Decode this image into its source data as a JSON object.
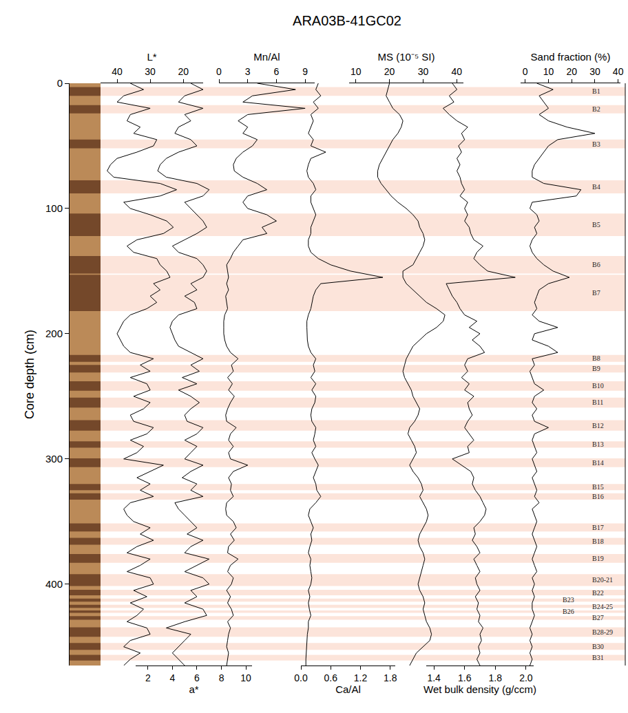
{
  "chart_data": {
    "type": "line",
    "title": "ARA03B-41GC02",
    "y_label": "Core depth (cm)",
    "ylim": [
      465,
      0
    ],
    "yticks": [
      0,
      100,
      200,
      300,
      400
    ],
    "grid": false,
    "y": [
      0,
      5,
      10,
      15,
      20,
      25,
      30,
      35,
      40,
      45,
      50,
      55,
      60,
      65,
      70,
      75,
      80,
      85,
      90,
      95,
      100,
      105,
      110,
      115,
      120,
      125,
      130,
      135,
      140,
      145,
      150,
      155,
      160,
      165,
      170,
      175,
      180,
      185,
      190,
      195,
      200,
      205,
      210,
      215,
      220,
      225,
      230,
      235,
      240,
      245,
      250,
      255,
      260,
      265,
      270,
      275,
      280,
      285,
      290,
      295,
      300,
      305,
      310,
      315,
      320,
      325,
      330,
      335,
      340,
      345,
      350,
      355,
      360,
      365,
      370,
      375,
      380,
      385,
      390,
      395,
      400,
      405,
      410,
      415,
      420,
      425,
      430,
      435,
      440,
      445,
      450,
      455,
      460,
      465
    ],
    "series": [
      {
        "name": "L*",
        "color": "#000000",
        "line_style": "solid",
        "axis": "top",
        "xlim": [
          45,
          14
        ],
        "xticks": [
          40,
          30,
          20
        ],
        "values": [
          36,
          32,
          38,
          40,
          30,
          36,
          37,
          33,
          35,
          28,
          29,
          34,
          40,
          42,
          43,
          41,
          27,
          22,
          27,
          38,
          36,
          30,
          25,
          23,
          26,
          34,
          37,
          35,
          28,
          27,
          25,
          24,
          29,
          27,
          30,
          28,
          31,
          36,
          38,
          39,
          40,
          39,
          38,
          36,
          29,
          33,
          30,
          36,
          31,
          30,
          35,
          30,
          32,
          36,
          35,
          29,
          31,
          36,
          32,
          34,
          38,
          26,
          30,
          34,
          30,
          33,
          29,
          36,
          38,
          37,
          35,
          30,
          33,
          29,
          34,
          37,
          30,
          33,
          37,
          30,
          29,
          35,
          31,
          36,
          32,
          34,
          37,
          31,
          30,
          36,
          38,
          33,
          36,
          38
        ]
      },
      {
        "name": "a*",
        "color": "#000000",
        "line_style": "solid",
        "axis": "bottom",
        "xlim": [
          1,
          10.5
        ],
        "xticks": [
          2,
          4,
          6,
          8,
          10
        ],
        "values": [
          5.5,
          6.5,
          5,
          4.5,
          6.5,
          5,
          5.5,
          4.5,
          4.2,
          5.5,
          6,
          4.5,
          3.5,
          3,
          2.8,
          3.5,
          6,
          7,
          6.5,
          5,
          5.5,
          6,
          6.5,
          6.8,
          6,
          5,
          4,
          4.5,
          6,
          6.5,
          6.8,
          6.5,
          5.5,
          6,
          5,
          5.8,
          6,
          4.5,
          4,
          3.8,
          4,
          4.2,
          4.5,
          5.5,
          6.5,
          5.5,
          6.2,
          4.8,
          6,
          4.5,
          5.5,
          6.2,
          5.5,
          5,
          5.2,
          6.5,
          6,
          5,
          6,
          5.5,
          5,
          6.5,
          5.5,
          4.8,
          6,
          5.5,
          6.5,
          4.2,
          4.5,
          5,
          5.5,
          6,
          5.2,
          6.5,
          5.5,
          5,
          7,
          6,
          5,
          6.5,
          7,
          5.5,
          6,
          5,
          6.5,
          6.8,
          5,
          3.5,
          5.5,
          5,
          4.5,
          4,
          4.5,
          5
        ]
      },
      {
        "name": "Mn/Al",
        "color": "#000000",
        "line_style": "solid",
        "axis": "top",
        "xlim": [
          0,
          10
        ],
        "xticks": [
          0,
          3,
          6,
          9
        ],
        "values": [
          4,
          8,
          3.5,
          2.5,
          9,
          3,
          2,
          3,
          2.5,
          4,
          3.5,
          2.5,
          1.8,
          1.5,
          1.6,
          2.5,
          4,
          5,
          3,
          2.5,
          3,
          5,
          6,
          4.5,
          5,
          2.5,
          2,
          1.5,
          1.2,
          0.8,
          0.9,
          1,
          0.8,
          1,
          0.7,
          0.8,
          0.9,
          0.6,
          0.5,
          0.5,
          0.5,
          0.6,
          0.8,
          1.2,
          2,
          1.3,
          1.5,
          0.9,
          1.4,
          1,
          1.6,
          1.2,
          0.9,
          0.7,
          0.8,
          1.8,
          1.2,
          1,
          1.5,
          1,
          1.2,
          3,
          1.5,
          1,
          1.3,
          1.2,
          1.5,
          0.8,
          0.7,
          0.8,
          1.5,
          1.8,
          1.2,
          1.6,
          1,
          0.9,
          2,
          1.2,
          0.9,
          1.5,
          1.3,
          0.8,
          1.2,
          0.9,
          1.3,
          1.5,
          0.9,
          1.2,
          1,
          0.9,
          0.8,
          1,
          0.9,
          0.8
        ]
      },
      {
        "name": "Ca/Al",
        "color": "#000000",
        "line_style": "solid",
        "axis": "bottom",
        "xlim": [
          0,
          1.9
        ],
        "xticks": [
          {
            "value": 0,
            "label": "0.0"
          },
          0.6,
          1.2,
          1.8
        ],
        "values": [
          0.35,
          0.3,
          0.4,
          0.25,
          0.35,
          0.2,
          0.25,
          0.2,
          0.15,
          0.25,
          0.2,
          0.5,
          0.2,
          0.15,
          0.12,
          0.15,
          0.25,
          0.3,
          0.2,
          0.2,
          0.25,
          0.3,
          0.25,
          0.2,
          0.2,
          0.15,
          0.15,
          0.2,
          0.35,
          0.6,
          1.0,
          1.65,
          0.4,
          0.3,
          0.25,
          0.22,
          0.2,
          0.15,
          0.12,
          0.12,
          0.12,
          0.13,
          0.15,
          0.2,
          0.3,
          0.25,
          0.28,
          0.2,
          0.3,
          0.22,
          0.3,
          0.28,
          0.22,
          0.2,
          0.22,
          0.3,
          0.28,
          0.25,
          0.3,
          0.22,
          0.28,
          0.35,
          0.3,
          0.25,
          0.3,
          0.32,
          0.4,
          0.3,
          0.18,
          0.15,
          0.2,
          0.25,
          0.2,
          0.22,
          0.18,
          0.15,
          0.2,
          0.18,
          0.2,
          0.22,
          0.2,
          0.15,
          0.18,
          0.15,
          0.17,
          0.2,
          0.15,
          0.15,
          0.13,
          0.12,
          0.12,
          0.1,
          0.1,
          0.1
        ]
      },
      {
        "name": "MS (10⁻⁵ SI)",
        "color": "#000000",
        "line_style": "solid",
        "axis": "top",
        "xlim": [
          8,
          42
        ],
        "xticks": [
          10,
          20,
          30,
          40
        ],
        "values": [
          20,
          19.5,
          19,
          20,
          21,
          23,
          24,
          23.5,
          22.5,
          21,
          20,
          19,
          18,
          17,
          16.5,
          16.5,
          17.5,
          19,
          20.5,
          22.5,
          25,
          27,
          28.5,
          29,
          30,
          30.5,
          30,
          29,
          28,
          27,
          24,
          24,
          25,
          27,
          29,
          31,
          34,
          36.5,
          36,
          34,
          31,
          29,
          27,
          26,
          25,
          24.5,
          24,
          24.5,
          25.5,
          26.5,
          27,
          28,
          29,
          28.5,
          27.5,
          26,
          25.5,
          26.5,
          27.5,
          28,
          27,
          26,
          27,
          28.5,
          29.5,
          30,
          29,
          30,
          31,
          31.5,
          31,
          30,
          29,
          28.5,
          29,
          30,
          30.5,
          30,
          29.5,
          29,
          28.5,
          29,
          30,
          30.5,
          30,
          30.5,
          31,
          32,
          32.5,
          32,
          30,
          28,
          27,
          26
        ]
      },
      {
        "name": "Wet bulk density (g/ccm)",
        "color": "#000000",
        "line_style": "solid",
        "axis": "bottom",
        "xlim": [
          1.35,
          2.05
        ],
        "xticks": [
          1.4,
          1.6,
          1.8,
          {
            "value": 2,
            "label": "2.0"
          }
        ],
        "values": [
          1.52,
          1.55,
          1.5,
          1.53,
          1.46,
          1.5,
          1.55,
          1.62,
          1.58,
          1.6,
          1.56,
          1.58,
          1.55,
          1.57,
          1.55,
          1.57,
          1.58,
          1.6,
          1.57,
          1.62,
          1.6,
          1.62,
          1.6,
          1.63,
          1.64,
          1.66,
          1.72,
          1.68,
          1.66,
          1.7,
          1.75,
          1.93,
          1.48,
          1.5,
          1.52,
          1.55,
          1.57,
          1.6,
          1.68,
          1.63,
          1.7,
          1.65,
          1.7,
          1.73,
          1.62,
          1.6,
          1.62,
          1.58,
          1.63,
          1.6,
          1.66,
          1.62,
          1.63,
          1.65,
          1.62,
          1.6,
          1.63,
          1.66,
          1.62,
          1.63,
          1.52,
          1.58,
          1.64,
          1.66,
          1.65,
          1.67,
          1.7,
          1.72,
          1.74,
          1.73,
          1.7,
          1.66,
          1.67,
          1.65,
          1.68,
          1.7,
          1.66,
          1.68,
          1.7,
          1.67,
          1.68,
          1.7,
          1.67,
          1.69,
          1.68,
          1.7,
          1.69,
          1.72,
          1.7,
          1.71,
          1.69,
          1.7,
          1.68,
          1.7
        ]
      },
      {
        "name": "Sand fraction (%)",
        "color": "#000000",
        "line_style": "solid",
        "axis": "top",
        "xlim": [
          -2,
          41
        ],
        "xticks": [
          0,
          10,
          20,
          30,
          40
        ],
        "values": [
          5,
          12,
          6,
          8,
          10,
          6,
          10,
          18,
          30,
          14,
          10,
          8,
          6,
          4,
          3,
          3,
          8,
          24,
          22,
          3,
          2,
          5,
          6,
          4,
          5,
          3,
          2,
          3,
          5,
          8,
          12,
          19,
          10,
          6,
          5,
          4,
          5,
          3,
          6,
          14,
          4,
          3,
          10,
          14,
          3,
          4,
          2,
          3,
          4,
          8,
          4,
          3,
          5,
          3,
          4,
          10,
          4,
          3,
          4,
          5,
          3,
          4,
          5,
          3,
          4,
          5,
          4,
          6,
          3,
          4,
          5,
          4,
          3,
          4,
          5,
          4,
          3,
          4,
          5,
          3,
          4,
          3,
          4,
          3,
          3,
          4,
          3,
          2,
          3,
          2,
          3,
          2,
          3,
          2
        ]
      }
    ],
    "bands": [
      {
        "label": "B1",
        "from": 3,
        "to": 10
      },
      {
        "label": "B2",
        "from": 17.5,
        "to": 24
      },
      {
        "label": "B3",
        "from": 45,
        "to": 52
      },
      {
        "label": "B4",
        "from": 77.5,
        "to": 88
      },
      {
        "label": "B5",
        "from": 104,
        "to": 122
      },
      {
        "label": "B6",
        "from": 138,
        "to": 152
      },
      {
        "label": "B7",
        "from": 153,
        "to": 182
      },
      {
        "label": "B8",
        "from": 217,
        "to": 222.5
      },
      {
        "label": "B9",
        "from": 225,
        "to": 231
      },
      {
        "label": "B10",
        "from": 238,
        "to": 245.5
      },
      {
        "label": "B11",
        "from": 251,
        "to": 259
      },
      {
        "label": "B12",
        "from": 269,
        "to": 277.5
      },
      {
        "label": "B13",
        "from": 286,
        "to": 291
      },
      {
        "label": "B14",
        "from": 299.5,
        "to": 306.5
      },
      {
        "label": "B15",
        "from": 320,
        "to": 325
      },
      {
        "label": "B16",
        "from": 327.5,
        "to": 332.5
      },
      {
        "label": "B17",
        "from": 351.5,
        "to": 358
      },
      {
        "label": "B18",
        "from": 363,
        "to": 368.5
      },
      {
        "label": "B19",
        "from": 376,
        "to": 383
      },
      {
        "label": "B20-21",
        "from": 392,
        "to": 401.5
      },
      {
        "label": "B22",
        "from": 404.5,
        "to": 409
      },
      {
        "label": "B23",
        "from": 411.5,
        "to": 414
      },
      {
        "label": "B24-25",
        "from": 416.5,
        "to": 419
      },
      {
        "label": "B26",
        "from": 421,
        "to": 423
      },
      {
        "label": "B27",
        "from": 425.5,
        "to": 428.5
      },
      {
        "label": "B28-29",
        "from": 434.5,
        "to": 442
      },
      {
        "label": "B30",
        "from": 447,
        "to": 452.5
      },
      {
        "label": "B31",
        "from": 456.5,
        "to": 461
      }
    ]
  }
}
